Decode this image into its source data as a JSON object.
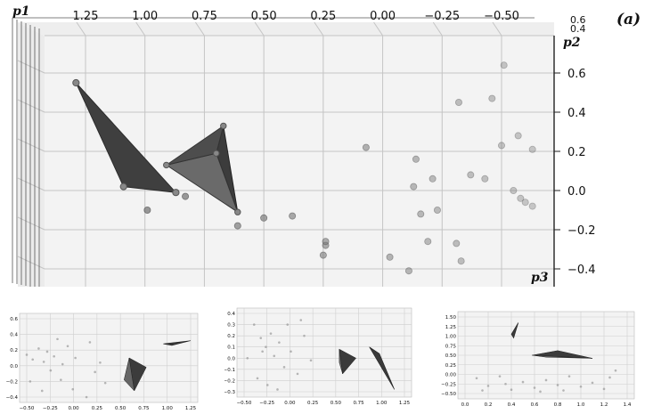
{
  "chart_data": [
    {
      "type": "scatter3d",
      "title": "(a)",
      "axis_names": [
        "p1",
        "p2",
        "p3"
      ],
      "p1_ticks": [
        "1.25",
        "1.00",
        "0.75",
        "0.50",
        "0.25",
        "0.00",
        "−0.25",
        "−0.50"
      ],
      "p2_ticks": [
        "0.6",
        "0.4",
        "0.2",
        "0.0",
        "−0.2",
        "−0.4"
      ],
      "corner_ticks": [
        "0.6",
        "0.4"
      ],
      "points": [
        [
          -0.51,
          0.64
        ],
        [
          -0.32,
          0.45
        ],
        [
          -0.46,
          0.47
        ],
        [
          -0.57,
          0.28
        ],
        [
          -0.5,
          0.23
        ],
        [
          -0.63,
          0.21
        ],
        [
          0.07,
          0.22
        ],
        [
          -0.14,
          0.16
        ],
        [
          -0.37,
          0.08
        ],
        [
          -0.43,
          0.06
        ],
        [
          -0.21,
          0.06
        ],
        [
          -0.13,
          0.02
        ],
        [
          -0.55,
          0.0
        ],
        [
          -0.58,
          -0.04
        ],
        [
          -0.63,
          -0.08
        ],
        [
          -0.6,
          -0.06
        ],
        [
          -0.23,
          -0.1
        ],
        [
          -0.16,
          -0.12
        ],
        [
          0.83,
          -0.03
        ],
        [
          0.99,
          -0.1
        ],
        [
          0.38,
          -0.13
        ],
        [
          0.5,
          -0.14
        ],
        [
          -0.19,
          -0.26
        ],
        [
          -0.31,
          -0.27
        ],
        [
          0.24,
          -0.28
        ],
        [
          -0.03,
          -0.34
        ],
        [
          -0.33,
          -0.36
        ],
        [
          -0.11,
          -0.41
        ],
        [
          0.61,
          -0.18
        ],
        [
          0.25,
          -0.33
        ],
        [
          0.24,
          -0.26
        ]
      ],
      "shapes": [
        {
          "kind": "triangle",
          "color": "#3f3f3f",
          "vertices": [
            [
              1.29,
              0.55
            ],
            [
              1.09,
              0.02
            ],
            [
              0.87,
              -0.01
            ]
          ]
        },
        {
          "kind": "tetrahedron",
          "colors": [
            "#3c3c3c",
            "#6a6a6a",
            "#4d4d4d"
          ],
          "vertices": [
            [
              0.91,
              0.13
            ],
            [
              0.67,
              0.33
            ],
            [
              0.7,
              0.19
            ],
            [
              0.61,
              -0.11
            ]
          ]
        }
      ]
    },
    {
      "type": "scatter3d",
      "x_ticks": [
        "−0.50",
        "−0.25",
        "0.00",
        "0.25",
        "0.50",
        "0.75",
        "1.00",
        "1.25"
      ],
      "y_ticks": [
        "0.6",
        "0.4",
        "0.2",
        "0.0",
        "−0.2",
        "−0.4"
      ],
      "points": [
        [
          -0.62,
          0.14
        ],
        [
          -0.55,
          0.08
        ],
        [
          -0.48,
          0.22
        ],
        [
          -0.42,
          0.05
        ],
        [
          -0.38,
          0.18
        ],
        [
          -0.34,
          -0.06
        ],
        [
          -0.3,
          0.12
        ],
        [
          -0.26,
          0.34
        ],
        [
          -0.22,
          -0.18
        ],
        [
          -0.2,
          0.02
        ],
        [
          -0.14,
          0.25
        ],
        [
          -0.08,
          -0.3
        ],
        [
          -0.05,
          0.1
        ],
        [
          0.08,
          -0.4
        ],
        [
          0.18,
          -0.08
        ],
        [
          0.24,
          0.04
        ],
        [
          0.3,
          -0.22
        ],
        [
          -0.58,
          -0.2
        ],
        [
          -0.44,
          -0.32
        ],
        [
          0.12,
          0.3
        ]
      ],
      "shapes": [
        {
          "kind": "tetrahedron",
          "colors": [
            "#3c3c3c",
            "#666666"
          ],
          "vertices": [
            [
              0.58,
              0.1
            ],
            [
              0.78,
              -0.02
            ],
            [
              0.64,
              -0.32
            ],
            [
              0.52,
              -0.18
            ]
          ]
        },
        {
          "kind": "triangle",
          "color": "#3a3a3a",
          "vertices": [
            [
              0.98,
              0.28
            ],
            [
              1.3,
              0.32
            ],
            [
              1.08,
              0.26
            ]
          ]
        }
      ]
    },
    {
      "type": "scatter3d",
      "x_ticks": [
        "−0.50",
        "−0.25",
        "0.00",
        "0.25",
        "0.50",
        "0.75",
        "1.00",
        "1.25"
      ],
      "y_ticks": [
        "0.4",
        "0.3",
        "0.2",
        "0.1",
        "0.0",
        "−0.1",
        "−0.2",
        "−0.3"
      ],
      "points": [
        [
          -0.5,
          0.3
        ],
        [
          -0.42,
          0.18
        ],
        [
          -0.36,
          0.1
        ],
        [
          -0.3,
          0.22
        ],
        [
          -0.26,
          0.02
        ],
        [
          -0.2,
          0.14
        ],
        [
          -0.14,
          -0.08
        ],
        [
          -0.1,
          0.3
        ],
        [
          -0.06,
          0.06
        ],
        [
          0.02,
          -0.14
        ],
        [
          0.1,
          0.2
        ],
        [
          -0.46,
          -0.18
        ],
        [
          -0.34,
          -0.24
        ],
        [
          -0.22,
          -0.28
        ],
        [
          0.18,
          -0.02
        ],
        [
          -0.4,
          0.06
        ],
        [
          0.06,
          0.34
        ],
        [
          -0.58,
          0.0
        ]
      ],
      "shapes": [
        {
          "kind": "tetrahedron",
          "colors": [
            "#3a3a3a",
            "#6a6a6a"
          ],
          "vertices": [
            [
              0.52,
              0.08
            ],
            [
              0.72,
              0.0
            ],
            [
              0.56,
              -0.14
            ],
            [
              0.52,
              -0.04
            ]
          ]
        },
        {
          "kind": "triangle",
          "color": "#3a3a3a",
          "vertices": [
            [
              0.88,
              0.1
            ],
            [
              1.18,
              -0.28
            ],
            [
              1.0,
              0.04
            ]
          ]
        }
      ]
    },
    {
      "type": "scatter3d",
      "x_ticks": [
        "0.0",
        "0.2",
        "0.4",
        "0.6",
        "0.8",
        "1.0",
        "1.2",
        "1.4"
      ],
      "y_ticks": [
        "1.50",
        "1.25",
        "1.00",
        "0.75",
        "0.50",
        "0.25",
        "0.00",
        "−0.25",
        "−0.50"
      ],
      "points": [
        [
          0.1,
          -0.1
        ],
        [
          0.2,
          -0.3
        ],
        [
          0.3,
          -0.05
        ],
        [
          0.4,
          -0.4
        ],
        [
          0.5,
          -0.2
        ],
        [
          0.6,
          -0.35
        ],
        [
          0.7,
          -0.15
        ],
        [
          0.8,
          -0.28
        ],
        [
          0.9,
          -0.05
        ],
        [
          1.0,
          -0.32
        ],
        [
          1.1,
          -0.22
        ],
        [
          1.2,
          -0.38
        ],
        [
          1.3,
          0.1
        ],
        [
          0.35,
          -0.25
        ],
        [
          0.65,
          -0.45
        ],
        [
          0.85,
          -0.42
        ],
        [
          1.25,
          -0.08
        ],
        [
          0.15,
          -0.42
        ]
      ],
      "shapes": [
        {
          "kind": "triangle",
          "color": "#3a3a3a",
          "vertices": [
            [
              0.42,
              0.95
            ],
            [
              0.46,
              1.35
            ],
            [
              0.4,
              1.05
            ]
          ]
        },
        {
          "kind": "tetrahedron",
          "colors": [
            "#3c3c3c",
            "#666666"
          ],
          "vertices": [
            [
              0.58,
              0.5
            ],
            [
              0.8,
              0.62
            ],
            [
              1.1,
              0.42
            ],
            [
              0.7,
              0.45
            ]
          ]
        }
      ]
    }
  ]
}
